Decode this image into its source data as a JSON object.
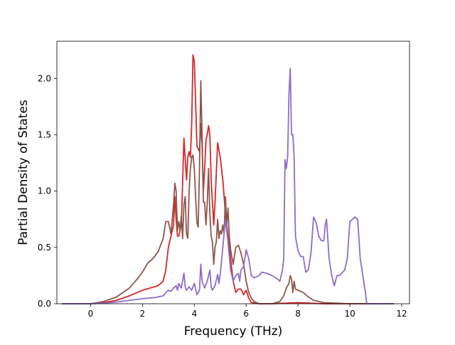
{
  "chart_data": {
    "type": "line",
    "title": "",
    "xlabel": "Frequency (THz)",
    "ylabel": "Partial Density of States",
    "xlim": [
      -1.3,
      12.3
    ],
    "ylim": [
      0.0,
      2.33
    ],
    "xticks": [
      0,
      2,
      4,
      6,
      8,
      10,
      12
    ],
    "yticks": [
      0.0,
      0.5,
      1.0,
      1.5,
      2.0
    ],
    "xtick_labels": [
      "0",
      "2",
      "4",
      "6",
      "8",
      "10",
      "12"
    ],
    "ytick_labels": [
      "0.0",
      "0.5",
      "1.0",
      "1.5",
      "2.0"
    ],
    "grid": false,
    "legend": "none",
    "series": [
      {
        "color": "#d62728",
        "points": [
          [
            -1.1,
            0
          ],
          [
            0,
            0
          ],
          [
            0.5,
            0.01
          ],
          [
            1.0,
            0.03
          ],
          [
            1.5,
            0.07
          ],
          [
            1.8,
            0.1
          ],
          [
            2.0,
            0.12
          ],
          [
            2.3,
            0.14
          ],
          [
            2.6,
            0.16
          ],
          [
            2.8,
            0.2
          ],
          [
            2.9,
            0.3
          ],
          [
            3.0,
            0.5
          ],
          [
            3.1,
            0.6
          ],
          [
            3.2,
            0.7
          ],
          [
            3.25,
            0.95
          ],
          [
            3.3,
            0.75
          ],
          [
            3.35,
            0.6
          ],
          [
            3.4,
            0.6
          ],
          [
            3.5,
            0.7
          ],
          [
            3.6,
            1.47
          ],
          [
            3.7,
            1.1
          ],
          [
            3.75,
            1.3
          ],
          [
            3.8,
            1.35
          ],
          [
            3.85,
            1.3
          ],
          [
            3.9,
            1.6
          ],
          [
            3.95,
            2.21
          ],
          [
            4.0,
            2.15
          ],
          [
            4.05,
            1.8
          ],
          [
            4.1,
            1.4
          ],
          [
            4.2,
            1.35
          ],
          [
            4.25,
            1.6
          ],
          [
            4.3,
            1.4
          ],
          [
            4.35,
            1.0
          ],
          [
            4.4,
            1.2
          ],
          [
            4.45,
            1.45
          ],
          [
            4.5,
            1.5
          ],
          [
            4.55,
            1.58
          ],
          [
            4.6,
            1.5
          ],
          [
            4.65,
            1.1
          ],
          [
            4.7,
            0.9
          ],
          [
            4.75,
            0.7
          ],
          [
            4.8,
            0.9
          ],
          [
            4.9,
            1.43
          ],
          [
            5.0,
            1.3
          ],
          [
            5.1,
            1.1
          ],
          [
            5.2,
            0.8
          ],
          [
            5.3,
            0.6
          ],
          [
            5.4,
            0.4
          ],
          [
            5.5,
            0.2
          ],
          [
            5.6,
            0.1
          ],
          [
            5.7,
            0.13
          ],
          [
            5.8,
            0.13
          ],
          [
            5.9,
            0.08
          ],
          [
            6.0,
            0.12
          ],
          [
            6.1,
            0.05
          ],
          [
            6.2,
            0.01
          ],
          [
            6.5,
            0
          ],
          [
            7.0,
            0
          ],
          [
            8.0,
            0.01
          ],
          [
            9.0,
            0
          ],
          [
            10.0,
            0
          ],
          [
            11.7,
            0
          ]
        ]
      },
      {
        "color": "#8c564b",
        "points": [
          [
            -1.1,
            0
          ],
          [
            0,
            0
          ],
          [
            0.5,
            0.02
          ],
          [
            1.0,
            0.06
          ],
          [
            1.5,
            0.14
          ],
          [
            1.8,
            0.22
          ],
          [
            2.0,
            0.28
          ],
          [
            2.2,
            0.36
          ],
          [
            2.4,
            0.4
          ],
          [
            2.6,
            0.46
          ],
          [
            2.8,
            0.58
          ],
          [
            2.9,
            0.73
          ],
          [
            3.0,
            0.73
          ],
          [
            3.1,
            0.62
          ],
          [
            3.2,
            0.88
          ],
          [
            3.25,
            1.07
          ],
          [
            3.3,
            1.0
          ],
          [
            3.35,
            0.65
          ],
          [
            3.4,
            0.73
          ],
          [
            3.45,
            0.65
          ],
          [
            3.5,
            0.78
          ],
          [
            3.55,
            0.58
          ],
          [
            3.6,
            0.88
          ],
          [
            3.65,
            0.95
          ],
          [
            3.7,
            0.62
          ],
          [
            3.75,
            0.58
          ],
          [
            3.8,
            1.0
          ],
          [
            3.85,
            1.2
          ],
          [
            3.9,
            1.3
          ],
          [
            3.95,
            1.32
          ],
          [
            4.0,
            1.2
          ],
          [
            4.05,
            0.95
          ],
          [
            4.1,
            0.72
          ],
          [
            4.15,
            0.68
          ],
          [
            4.2,
            1.2
          ],
          [
            4.25,
            1.98
          ],
          [
            4.3,
            1.5
          ],
          [
            4.35,
            0.9
          ],
          [
            4.4,
            0.9
          ],
          [
            4.45,
            0.7
          ],
          [
            4.5,
            0.9
          ],
          [
            4.55,
            1.2
          ],
          [
            4.6,
            0.8
          ],
          [
            4.65,
            0.6
          ],
          [
            4.7,
            0.55
          ],
          [
            4.75,
            0.35
          ],
          [
            4.8,
            0.5
          ],
          [
            4.85,
            0.55
          ],
          [
            4.9,
            0.75
          ],
          [
            4.95,
            0.58
          ],
          [
            5.0,
            0.65
          ],
          [
            5.05,
            0.62
          ],
          [
            5.1,
            0.7
          ],
          [
            5.15,
            0.62
          ],
          [
            5.2,
            0.95
          ],
          [
            5.25,
            0.7
          ],
          [
            5.3,
            0.85
          ],
          [
            5.35,
            0.6
          ],
          [
            5.4,
            0.48
          ],
          [
            5.5,
            0.35
          ],
          [
            5.6,
            0.5
          ],
          [
            5.7,
            0.52
          ],
          [
            5.8,
            0.45
          ],
          [
            5.9,
            0.35
          ],
          [
            6.0,
            0.2
          ],
          [
            6.1,
            0.1
          ],
          [
            6.2,
            0.05
          ],
          [
            6.3,
            0.02
          ],
          [
            6.5,
            0
          ],
          [
            7.0,
            0
          ],
          [
            7.3,
            0.02
          ],
          [
            7.45,
            0.07
          ],
          [
            7.55,
            0.14
          ],
          [
            7.65,
            0.18
          ],
          [
            7.7,
            0.25
          ],
          [
            7.75,
            0.22
          ],
          [
            7.8,
            0.1
          ],
          [
            7.85,
            0.2
          ],
          [
            7.9,
            0.13
          ],
          [
            8.0,
            0.12
          ],
          [
            8.2,
            0.1
          ],
          [
            8.4,
            0.06
          ],
          [
            8.6,
            0.03
          ],
          [
            9.0,
            0.01
          ],
          [
            10.0,
            0
          ],
          [
            11.7,
            0
          ]
        ]
      },
      {
        "color": "#8e6cc7",
        "points": [
          [
            -1.1,
            0
          ],
          [
            0,
            0
          ],
          [
            0.5,
            0.005
          ],
          [
            1.0,
            0.015
          ],
          [
            1.5,
            0.03
          ],
          [
            2.0,
            0.045
          ],
          [
            2.5,
            0.055
          ],
          [
            2.8,
            0.07
          ],
          [
            2.9,
            0.1
          ],
          [
            3.0,
            0.12
          ],
          [
            3.1,
            0.11
          ],
          [
            3.2,
            0.14
          ],
          [
            3.3,
            0.16
          ],
          [
            3.35,
            0.12
          ],
          [
            3.4,
            0.18
          ],
          [
            3.5,
            0.14
          ],
          [
            3.6,
            0.27
          ],
          [
            3.65,
            0.15
          ],
          [
            3.7,
            0.12
          ],
          [
            3.8,
            0.15
          ],
          [
            3.9,
            0.12
          ],
          [
            4.0,
            0.18
          ],
          [
            4.1,
            0.08
          ],
          [
            4.2,
            0.12
          ],
          [
            4.25,
            0.35
          ],
          [
            4.3,
            0.2
          ],
          [
            4.4,
            0.14
          ],
          [
            4.5,
            0.2
          ],
          [
            4.6,
            0.3
          ],
          [
            4.65,
            0.15
          ],
          [
            4.7,
            0.12
          ],
          [
            4.8,
            0.16
          ],
          [
            4.9,
            0.26
          ],
          [
            4.95,
            0.18
          ],
          [
            5.0,
            0.26
          ],
          [
            5.1,
            0.5
          ],
          [
            5.2,
            0.75
          ],
          [
            5.3,
            0.55
          ],
          [
            5.4,
            0.3
          ],
          [
            5.5,
            0.2
          ],
          [
            5.6,
            0.25
          ],
          [
            5.7,
            0.27
          ],
          [
            5.75,
            0.2
          ],
          [
            5.8,
            0.3
          ],
          [
            5.9,
            0.33
          ],
          [
            6.0,
            0.48
          ],
          [
            6.1,
            0.4
          ],
          [
            6.2,
            0.25
          ],
          [
            6.3,
            0.23
          ],
          [
            6.5,
            0.25
          ],
          [
            6.6,
            0.28
          ],
          [
            6.8,
            0.27
          ],
          [
            7.0,
            0.25
          ],
          [
            7.2,
            0.22
          ],
          [
            7.3,
            0.2
          ],
          [
            7.4,
            0.3
          ],
          [
            7.45,
            0.4
          ],
          [
            7.5,
            1.28
          ],
          [
            7.55,
            1.2
          ],
          [
            7.6,
            1.3
          ],
          [
            7.65,
            1.85
          ],
          [
            7.7,
            2.09
          ],
          [
            7.75,
            1.5
          ],
          [
            7.8,
            1.5
          ],
          [
            7.85,
            1.3
          ],
          [
            7.9,
            0.6
          ],
          [
            8.0,
            0.47
          ],
          [
            8.1,
            0.42
          ],
          [
            8.2,
            0.42
          ],
          [
            8.3,
            0.28
          ],
          [
            8.4,
            0.3
          ],
          [
            8.5,
            0.45
          ],
          [
            8.6,
            0.77
          ],
          [
            8.7,
            0.72
          ],
          [
            8.8,
            0.6
          ],
          [
            8.9,
            0.56
          ],
          [
            9.0,
            0.56
          ],
          [
            9.05,
            0.7
          ],
          [
            9.1,
            0.75
          ],
          [
            9.2,
            0.4
          ],
          [
            9.3,
            0.25
          ],
          [
            9.4,
            0.16
          ],
          [
            9.5,
            0.25
          ],
          [
            9.6,
            0.25
          ],
          [
            9.8,
            0.3
          ],
          [
            9.9,
            0.4
          ],
          [
            10.0,
            0.73
          ],
          [
            10.1,
            0.75
          ],
          [
            10.2,
            0.77
          ],
          [
            10.3,
            0.75
          ],
          [
            10.4,
            0.4
          ],
          [
            10.5,
            0.25
          ],
          [
            10.6,
            0.1
          ],
          [
            10.65,
            0
          ],
          [
            11.7,
            0
          ]
        ]
      }
    ]
  }
}
